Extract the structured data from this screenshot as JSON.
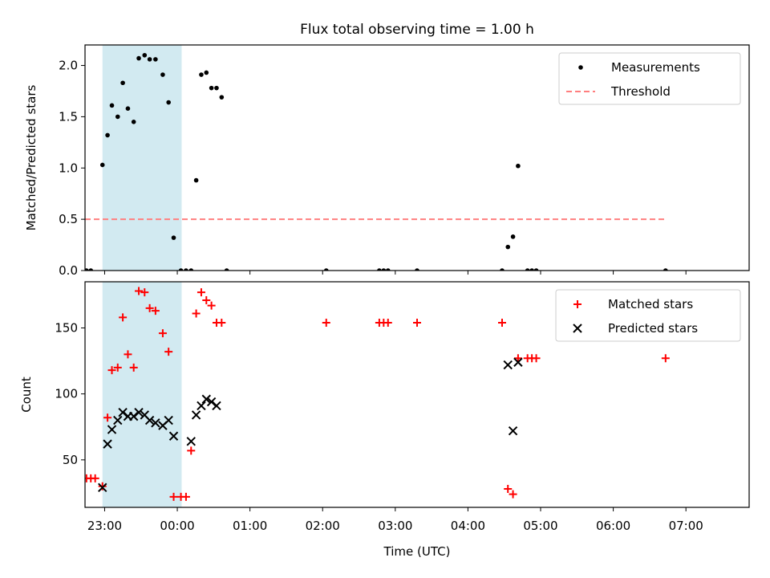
{
  "chart_data": {
    "type": "scatter",
    "title": "Flux total observing time = 1.00 h",
    "xlabel": "Time (UTC)",
    "x_unit": "hours relative to 00:00 UTC",
    "xlim": [
      -1.27,
      7.87
    ],
    "x_ticks": [
      {
        "value": -1,
        "label": "23:00"
      },
      {
        "value": 0,
        "label": "00:00"
      },
      {
        "value": 1,
        "label": "01:00"
      },
      {
        "value": 2,
        "label": "02:00"
      },
      {
        "value": 3,
        "label": "03:00"
      },
      {
        "value": 4,
        "label": "04:00"
      },
      {
        "value": 5,
        "label": "05:00"
      },
      {
        "value": 6,
        "label": "06:00"
      },
      {
        "value": 7,
        "label": "07:00"
      }
    ],
    "shaded_interval": {
      "x_start": -1.03,
      "x_end": 0.06,
      "color": "#add8e6"
    },
    "panels": [
      {
        "id": "ratio",
        "ylabel": "Matched/Predicted stars",
        "ylim": [
          0,
          2.2
        ],
        "y_ticks": [
          {
            "value": 0.0,
            "label": "0.0"
          },
          {
            "value": 0.5,
            "label": "0.5"
          },
          {
            "value": 1.0,
            "label": "1.0"
          },
          {
            "value": 1.5,
            "label": "1.5"
          },
          {
            "value": 2.0,
            "label": "2.0"
          }
        ],
        "legend": {
          "position": "upper right",
          "entries": [
            "Measurements",
            "Threshold"
          ]
        },
        "series": [
          {
            "name": "Measurements",
            "marker": "dot",
            "color": "#000000",
            "points": [
              [
                -1.31,
                0.0
              ],
              [
                -1.25,
                0.0
              ],
              [
                -1.19,
                0.0
              ],
              [
                -1.03,
                1.03
              ],
              [
                -0.96,
                1.32
              ],
              [
                -0.9,
                1.61
              ],
              [
                -0.82,
                1.5
              ],
              [
                -0.75,
                1.83
              ],
              [
                -0.68,
                1.58
              ],
              [
                -0.6,
                1.45
              ],
              [
                -0.53,
                2.07
              ],
              [
                -0.45,
                2.1
              ],
              [
                -0.38,
                2.06
              ],
              [
                -0.3,
                2.06
              ],
              [
                -0.2,
                1.91
              ],
              [
                -0.12,
                1.64
              ],
              [
                -0.05,
                0.32
              ],
              [
                0.05,
                0.0
              ],
              [
                0.12,
                0.0
              ],
              [
                0.19,
                0.0
              ],
              [
                0.26,
                0.88
              ],
              [
                0.33,
                1.91
              ],
              [
                0.4,
                1.93
              ],
              [
                0.47,
                1.78
              ],
              [
                0.54,
                1.78
              ],
              [
                0.61,
                1.69
              ],
              [
                0.68,
                0.0
              ],
              [
                2.05,
                0.0
              ],
              [
                2.78,
                0.0
              ],
              [
                2.84,
                0.0
              ],
              [
                2.9,
                0.0
              ],
              [
                3.3,
                0.0
              ],
              [
                4.47,
                0.0
              ],
              [
                4.55,
                0.23
              ],
              [
                4.62,
                0.33
              ],
              [
                4.69,
                1.02
              ],
              [
                4.82,
                0.0
              ],
              [
                4.88,
                0.0
              ],
              [
                4.94,
                0.0
              ],
              [
                6.72,
                0.0
              ]
            ]
          },
          {
            "name": "Threshold",
            "marker": "dashed-line",
            "color": "#ff7f7f",
            "points": [
              [
                -1.27,
                0.5
              ],
              [
                6.72,
                0.5
              ]
            ]
          }
        ]
      },
      {
        "id": "count",
        "ylabel": "Count",
        "ylim": [
          14,
          185
        ],
        "y_ticks": [
          {
            "value": 50,
            "label": "50"
          },
          {
            "value": 100,
            "label": "100"
          },
          {
            "value": 150,
            "label": "150"
          }
        ],
        "legend": {
          "position": "upper right",
          "entries": [
            "Matched stars",
            "Predicted stars"
          ]
        },
        "series": [
          {
            "name": "Matched stars",
            "marker": "plus",
            "color": "#ff0000",
            "points": [
              [
                -1.25,
                36
              ],
              [
                -1.19,
                36
              ],
              [
                -1.13,
                36
              ],
              [
                -1.03,
                30
              ],
              [
                -0.96,
                82
              ],
              [
                -0.9,
                118
              ],
              [
                -0.82,
                120
              ],
              [
                -0.75,
                158
              ],
              [
                -0.68,
                130
              ],
              [
                -0.6,
                120
              ],
              [
                -0.53,
                178
              ],
              [
                -0.45,
                177
              ],
              [
                -0.38,
                165
              ],
              [
                -0.3,
                163
              ],
              [
                -0.2,
                146
              ],
              [
                -0.12,
                132
              ],
              [
                -0.05,
                22
              ],
              [
                0.05,
                22
              ],
              [
                0.12,
                22
              ],
              [
                0.19,
                57
              ],
              [
                0.26,
                161
              ],
              [
                0.33,
                177
              ],
              [
                0.4,
                171
              ],
              [
                0.47,
                167
              ],
              [
                0.54,
                154
              ],
              [
                0.61,
                154
              ],
              [
                2.05,
                154
              ],
              [
                2.78,
                154
              ],
              [
                2.84,
                154
              ],
              [
                2.9,
                154
              ],
              [
                3.3,
                154
              ],
              [
                4.47,
                154
              ],
              [
                4.55,
                28
              ],
              [
                4.62,
                24
              ],
              [
                4.69,
                127
              ],
              [
                4.82,
                127
              ],
              [
                4.88,
                127
              ],
              [
                4.94,
                127
              ],
              [
                6.72,
                127
              ]
            ]
          },
          {
            "name": "Predicted stars",
            "marker": "x",
            "color": "#000000",
            "points": [
              [
                -1.03,
                29
              ],
              [
                -0.96,
                62
              ],
              [
                -0.9,
                73
              ],
              [
                -0.82,
                80
              ],
              [
                -0.75,
                86
              ],
              [
                -0.68,
                83
              ],
              [
                -0.6,
                83
              ],
              [
                -0.53,
                86
              ],
              [
                -0.45,
                84
              ],
              [
                -0.38,
                80
              ],
              [
                -0.3,
                78
              ],
              [
                -0.2,
                76
              ],
              [
                -0.12,
                80
              ],
              [
                -0.05,
                68
              ],
              [
                0.19,
                64
              ],
              [
                0.26,
                84
              ],
              [
                0.33,
                91
              ],
              [
                0.4,
                96
              ],
              [
                0.47,
                94
              ],
              [
                0.54,
                91
              ],
              [
                4.55,
                122
              ],
              [
                4.62,
                72
              ],
              [
                4.69,
                124
              ]
            ]
          }
        ]
      }
    ]
  }
}
